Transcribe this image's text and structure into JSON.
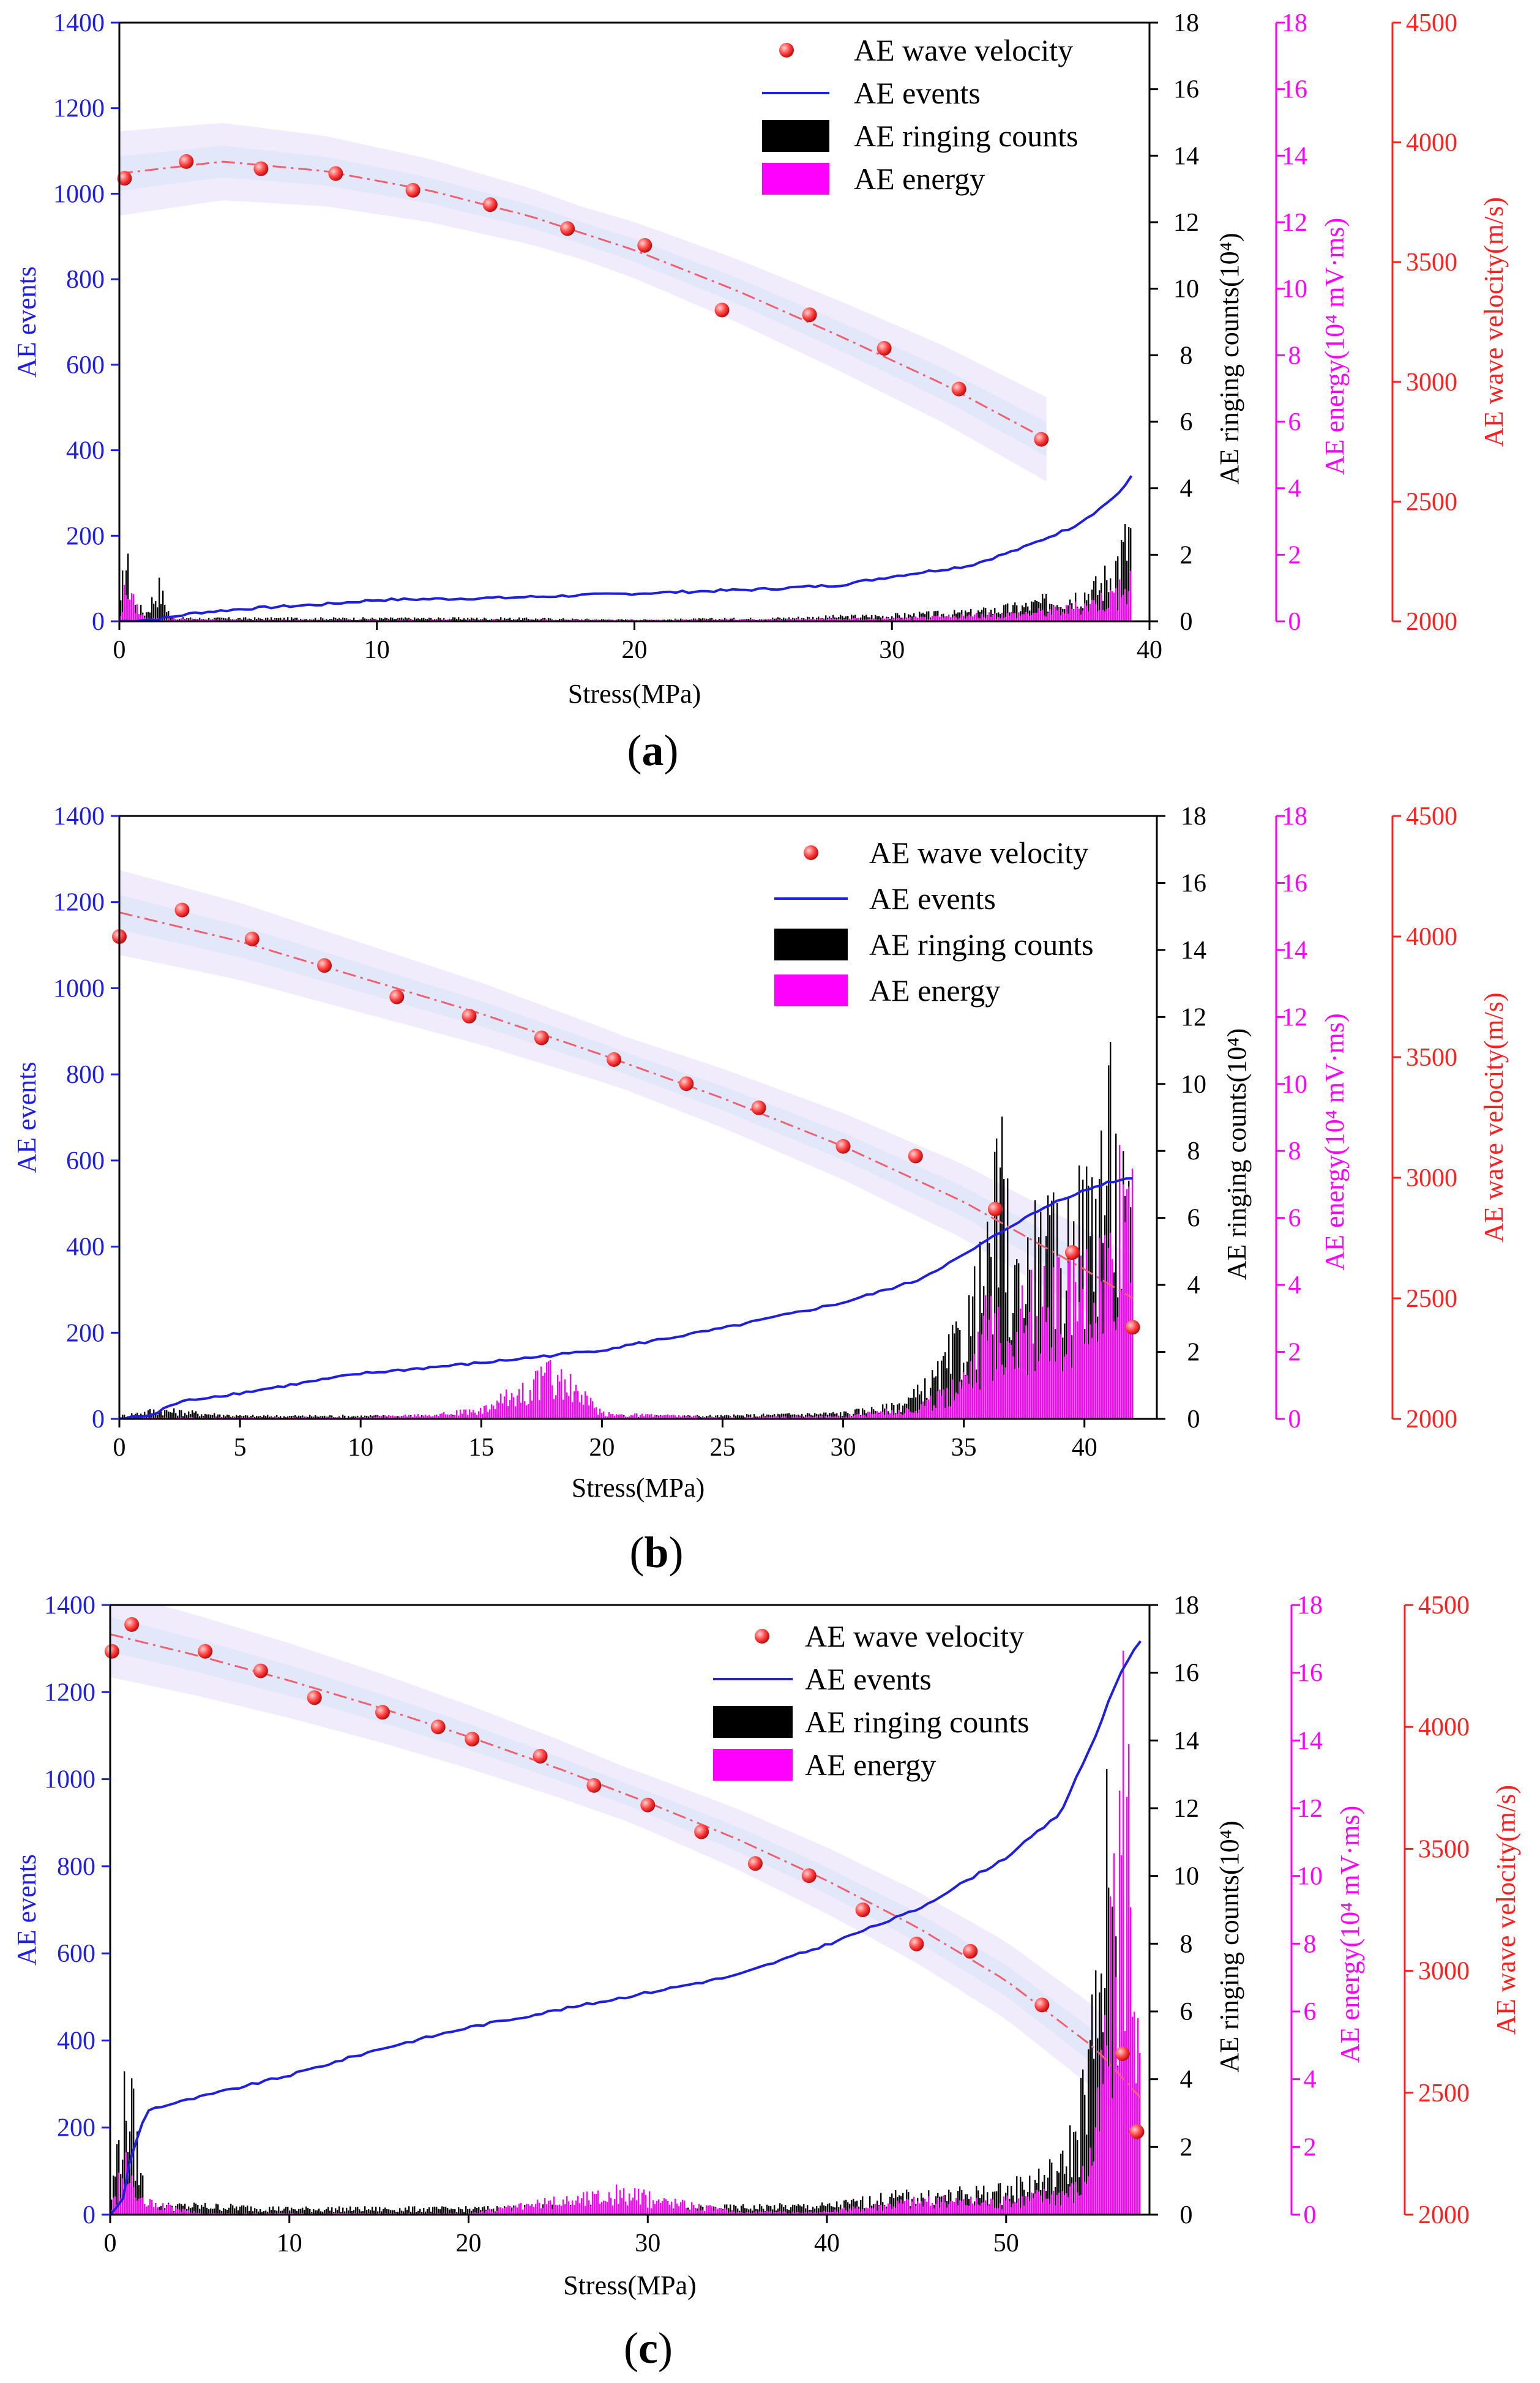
{
  "colors": {
    "events": "#1f1fe0",
    "ringing": "#000000",
    "energy": "#ff00ff",
    "velocity": "#ff2020",
    "band_outer": "#e6dcf8",
    "band_inner": "#d8e4f8"
  },
  "panels": [
    {
      "label_prefix": "(",
      "label": "a",
      "label_suffix": ")",
      "xlabel": "Stress(MPa)",
      "ylabel_left": "AE events",
      "ylabel_ringing": "AE ringing counts(10⁴)",
      "ylabel_energy": "AE energy(10⁴ mV·ms)",
      "ylabel_velocity": "AE wave velocity(m/s)",
      "x_ticks": [
        "0",
        "10",
        "20",
        "30",
        "40"
      ],
      "y_ticks_left": [
        "0",
        "200",
        "400",
        "600",
        "800",
        "1000",
        "1200",
        "1400"
      ],
      "y_ticks_ringing": [
        "0",
        "2",
        "4",
        "6",
        "8",
        "10",
        "12",
        "14",
        "16",
        "18"
      ],
      "y_ticks_energy": [
        "0",
        "2",
        "4",
        "6",
        "8",
        "10",
        "12",
        "14",
        "16",
        "18"
      ],
      "y_ticks_velocity": [
        "2000",
        "2500",
        "3000",
        "3500",
        "4000",
        "4500"
      ],
      "legend": [
        "AE wave velocity",
        "AE events",
        "AE ringing counts",
        "AE energy"
      ]
    },
    {
      "label_prefix": "(",
      "label": "b",
      "label_suffix": ")",
      "xlabel": "Stress(MPa)",
      "ylabel_left": "AE events",
      "ylabel_ringing": "AE ringing counts(10⁴)",
      "ylabel_energy": "AE energy(10⁴ mV·ms)",
      "ylabel_velocity": "AE wave velocity(m/s)",
      "x_ticks": [
        "0",
        "5",
        "10",
        "15",
        "20",
        "25",
        "30",
        "35",
        "40"
      ],
      "y_ticks_left": [
        "0",
        "200",
        "400",
        "600",
        "800",
        "1000",
        "1200",
        "1400"
      ],
      "y_ticks_ringing": [
        "0",
        "2",
        "4",
        "6",
        "8",
        "10",
        "12",
        "14",
        "16",
        "18"
      ],
      "y_ticks_energy": [
        "0",
        "2",
        "4",
        "6",
        "8",
        "10",
        "12",
        "14",
        "16",
        "18"
      ],
      "y_ticks_velocity": [
        "2000",
        "2500",
        "3000",
        "3500",
        "4000",
        "4500"
      ],
      "legend": [
        "AE wave velocity",
        "AE events",
        "AE ringing counts",
        "AE energy"
      ]
    },
    {
      "label_prefix": "(",
      "label": "c",
      "label_suffix": ")",
      "xlabel": "Stress(MPa)",
      "ylabel_left": "AE events",
      "ylabel_ringing": "AE ringing counts(10⁴)",
      "ylabel_energy": "AE energy(10⁴ mV·ms)",
      "ylabel_velocity": "AE wave velocity(m/s)",
      "x_ticks": [
        "0",
        "10",
        "20",
        "30",
        "40",
        "50"
      ],
      "y_ticks_left": [
        "0",
        "200",
        "400",
        "600",
        "800",
        "1000",
        "1200",
        "1400"
      ],
      "y_ticks_ringing": [
        "0",
        "2",
        "4",
        "6",
        "8",
        "10",
        "12",
        "14",
        "16",
        "18"
      ],
      "y_ticks_energy": [
        "0",
        "2",
        "4",
        "6",
        "8",
        "10",
        "12",
        "14",
        "16",
        "18"
      ],
      "y_ticks_velocity": [
        "2000",
        "2500",
        "3000",
        "3500",
        "4000",
        "4500"
      ],
      "legend": [
        "AE wave velocity",
        "AE events",
        "AE ringing counts",
        "AE energy"
      ]
    }
  ],
  "chart_data": [
    {
      "type": "line",
      "title": "(a)",
      "xlabel": "Stress(MPa)",
      "xlim": [
        0,
        40
      ],
      "y_axes": {
        "events": [
          0,
          1400
        ],
        "ringing_counts_1e4": [
          0,
          18
        ],
        "energy_1e4_mV_ms": [
          0,
          18
        ],
        "wave_velocity_m_s": [
          2000,
          4500
        ]
      },
      "series": [
        {
          "name": "AE wave velocity",
          "axis": "wave_velocity_m_s",
          "x": [
            0.2,
            2.6,
            5.5,
            8.4,
            11.4,
            14.4,
            17.4,
            20.4,
            23.4,
            26.8,
            29.7,
            32.6,
            35.8
          ],
          "values": [
            3850,
            3920,
            3890,
            3870,
            3800,
            3740,
            3640,
            3570,
            3300,
            3280,
            3140,
            2970,
            2760
          ]
        },
        {
          "name": "AE wave velocity fit",
          "axis": "wave_velocity_m_s",
          "x": [
            0,
            4,
            8,
            12,
            16,
            20,
            24,
            28,
            32,
            36
          ],
          "values": [
            3870,
            3920,
            3880,
            3800,
            3690,
            3550,
            3380,
            3190,
            2990,
            2760
          ]
        },
        {
          "name": "AE events",
          "axis": "events",
          "x": [
            0,
            1.5,
            2,
            3,
            5,
            8,
            10,
            15,
            20,
            25,
            28,
            30,
            33,
            35,
            37,
            38,
            39,
            39.3
          ],
          "values": [
            0,
            5,
            10,
            20,
            30,
            40,
            50,
            55,
            65,
            75,
            85,
            105,
            130,
            170,
            220,
            260,
            310,
            340
          ]
        },
        {
          "name": "AE ringing counts",
          "axis": "ringing_counts_1e4",
          "x": [
            0,
            0.2,
            0.5,
            1,
            1.5,
            2,
            5,
            10,
            15,
            20,
            25,
            30,
            33,
            35,
            36,
            37,
            38,
            38.5,
            39,
            39.3
          ],
          "values": [
            0.3,
            2.4,
            0.6,
            0.3,
            1.2,
            0.1,
            0.1,
            0.1,
            0.1,
            0.05,
            0.1,
            0.2,
            0.3,
            0.5,
            0.7,
            0.9,
            1.2,
            1.8,
            2.6,
            3.6
          ]
        },
        {
          "name": "AE energy",
          "axis": "energy_1e4_mV_ms",
          "x": [
            0,
            0.2,
            1,
            5,
            10,
            20,
            30,
            33,
            35,
            37,
            38,
            39,
            39.3
          ],
          "values": [
            0.2,
            1.2,
            0.1,
            0.05,
            0.05,
            0.05,
            0.1,
            0.2,
            0.3,
            0.5,
            0.8,
            1.2,
            1.5
          ]
        }
      ]
    },
    {
      "type": "line",
      "title": "(b)",
      "xlabel": "Stress(MPa)",
      "xlim": [
        0,
        43
      ],
      "y_axes": {
        "events": [
          0,
          1400
        ],
        "ringing_counts_1e4": [
          0,
          18
        ],
        "energy_1e4_mV_ms": [
          0,
          18
        ],
        "wave_velocity_m_s": [
          2000,
          4500
        ]
      },
      "series": [
        {
          "name": "AE wave velocity",
          "axis": "wave_velocity_m_s",
          "x": [
            0,
            2.6,
            5.5,
            8.5,
            11.5,
            14.5,
            17.5,
            20.5,
            23.5,
            26.5,
            30,
            33,
            36.3,
            39.5,
            42
          ],
          "values": [
            4000,
            4110,
            3990,
            3880,
            3750,
            3670,
            3580,
            3490,
            3390,
            3290,
            3130,
            3090,
            2870,
            2690,
            2380
          ]
        },
        {
          "name": "AE wave velocity fit",
          "axis": "wave_velocity_m_s",
          "x": [
            0,
            5,
            10,
            15,
            20,
            25,
            30,
            35,
            40,
            42
          ],
          "values": [
            4100,
            3980,
            3830,
            3680,
            3510,
            3330,
            3130,
            2900,
            2620,
            2500
          ]
        },
        {
          "name": "AE events",
          "axis": "events",
          "x": [
            0,
            1.5,
            2,
            3,
            5,
            10,
            15,
            20,
            25,
            30,
            33,
            35,
            37,
            39,
            41,
            42
          ],
          "values": [
            0,
            10,
            30,
            45,
            60,
            105,
            130,
            160,
            210,
            270,
            320,
            380,
            450,
            510,
            550,
            560
          ]
        },
        {
          "name": "AE ringing counts",
          "axis": "ringing_counts_1e4",
          "x": [
            0,
            1.5,
            5,
            10,
            15,
            20,
            25,
            30,
            32,
            33,
            34,
            35,
            36,
            36.5,
            37,
            38,
            39,
            40,
            41,
            41.5,
            42
          ],
          "values": [
            0.1,
            0.3,
            0.1,
            0.1,
            0.1,
            0.1,
            0.1,
            0.2,
            0.4,
            0.8,
            1.5,
            3.0,
            5.0,
            8.0,
            4.5,
            5.5,
            5.5,
            6.5,
            9.5,
            7.0,
            5.5
          ]
        },
        {
          "name": "AE energy",
          "axis": "energy_1e4_mV_ms",
          "x": [
            0,
            5,
            10,
            15,
            18,
            20,
            25,
            30,
            33,
            34,
            35,
            36,
            37,
            38,
            39,
            40,
            41,
            42
          ],
          "values": [
            0.05,
            0.05,
            0.05,
            0.3,
            1.7,
            0.2,
            0.05,
            0.1,
            0.4,
            0.8,
            1.8,
            3.5,
            3.5,
            4.0,
            4.5,
            4.5,
            5.5,
            9.8
          ]
        }
      ]
    },
    {
      "type": "line",
      "title": "(c)",
      "xlabel": "Stress(MPa)",
      "xlim": [
        0,
        58
      ],
      "y_axes": {
        "events": [
          0,
          1400
        ],
        "ringing_counts_1e4": [
          0,
          18
        ],
        "energy_1e4_mV_ms": [
          0,
          18
        ],
        "wave_velocity_m_s": [
          2000,
          4500
        ]
      },
      "series": [
        {
          "name": "AE wave velocity",
          "axis": "wave_velocity_m_s",
          "x": [
            0.1,
            1.2,
            5.3,
            8.4,
            11.4,
            15.2,
            18.3,
            20.2,
            24,
            27,
            30,
            33,
            36,
            39,
            42,
            45,
            48,
            52,
            56.5,
            57.3
          ],
          "values": [
            4310,
            4420,
            4310,
            4230,
            4120,
            4060,
            4000,
            3950,
            3880,
            3760,
            3680,
            3570,
            3440,
            3390,
            3250,
            3110,
            3080,
            2860,
            2660,
            2340
          ]
        },
        {
          "name": "AE wave velocity fit",
          "axis": "wave_velocity_m_s",
          "x": [
            0,
            5,
            10,
            15,
            20,
            25,
            30,
            35,
            40,
            45,
            50,
            55,
            57.5
          ],
          "values": [
            4380,
            4290,
            4190,
            4080,
            3960,
            3830,
            3690,
            3540,
            3370,
            3180,
            2960,
            2680,
            2480
          ]
        },
        {
          "name": "AE events",
          "axis": "events",
          "x": [
            0,
            0.8,
            1.2,
            1.6,
            2,
            5,
            10,
            15,
            20,
            25,
            30,
            35,
            40,
            45,
            50,
            53,
            55,
            56,
            57,
            57.5
          ],
          "values": [
            0,
            40,
            150,
            180,
            240,
            270,
            320,
            380,
            430,
            470,
            510,
            550,
            620,
            700,
            820,
            920,
            1100,
            1210,
            1290,
            1320
          ]
        },
        {
          "name": "AE ringing counts",
          "axis": "ringing_counts_1e4",
          "x": [
            0,
            0.5,
            1,
            1.5,
            2,
            5,
            10,
            20,
            28,
            30,
            40,
            44,
            46,
            50,
            53,
            54,
            55,
            55.5,
            56,
            56.5,
            57
          ],
          "values": [
            0.5,
            2.8,
            4.2,
            2.0,
            0.3,
            0.3,
            0.2,
            0.2,
            0.3,
            0.2,
            0.3,
            0.6,
            0.6,
            0.8,
            1.5,
            3.0,
            6.5,
            11.2,
            8.5,
            9.5,
            4.0
          ]
        },
        {
          "name": "AE energy",
          "axis": "energy_1e4_mV_ms",
          "x": [
            0,
            0.5,
            1,
            1.5,
            5,
            10,
            20,
            28.3,
            35,
            40,
            44.5,
            50,
            54,
            55,
            56,
            56.5,
            57,
            57.5
          ],
          "values": [
            0.2,
            1.2,
            1.8,
            0.5,
            0.05,
            0.05,
            0.05,
            0.8,
            0.1,
            0.1,
            0.5,
            0.5,
            1.0,
            3.0,
            10,
            17.2,
            14.0,
            3.0
          ]
        }
      ]
    }
  ]
}
